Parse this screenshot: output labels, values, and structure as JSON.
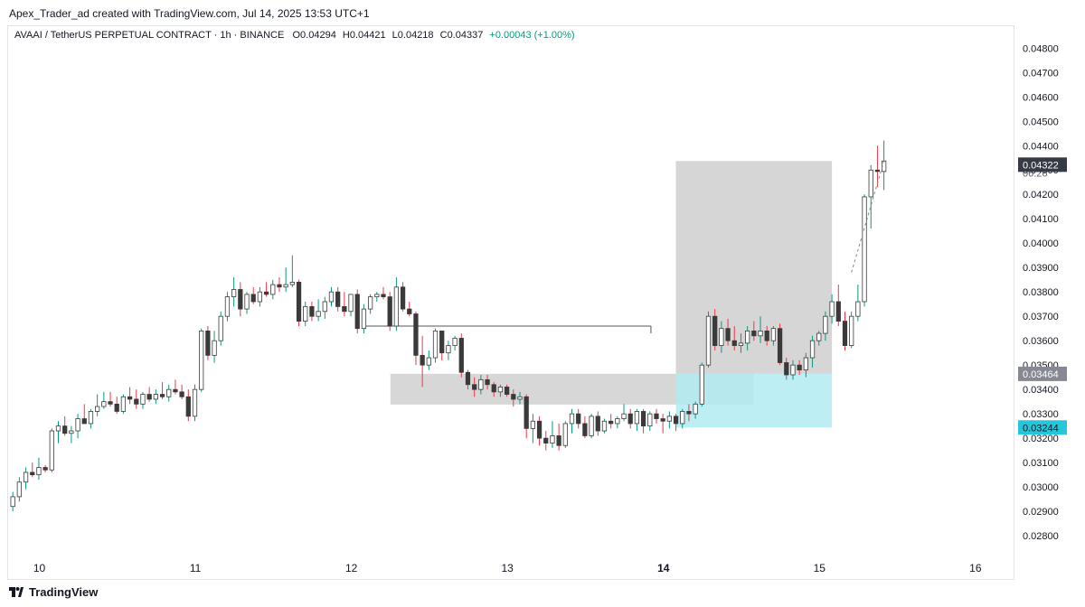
{
  "header": {
    "attribution": "Apex_Trader_ad created with TradingView.com, Jul 14, 2025 13:53 UTC+1"
  },
  "legend": {
    "symbol": "AVAAI / TetherUS PERPETUAL CONTRACT · 1h · BINANCE",
    "o_label": "O",
    "o_value": "0.04294",
    "h_label": "H",
    "h_value": "0.04421",
    "l_label": "L",
    "l_value": "0.04218",
    "c_label": "C",
    "c_value": "0.04337",
    "change": "+0.00043 (+1.00%)"
  },
  "footer": {
    "brand": "TradingView"
  },
  "colors": {
    "up": "#089981",
    "down": "#f23645",
    "candle_fill_up": "#ffffff",
    "candle_fill_down": "#3a3a3a",
    "profit_zone": "#c8c8c8",
    "stop_zone": "#b2ebf2",
    "current_price_badge": "#363a45",
    "entry_badge": "#868993",
    "stop_badge": "#26c6da"
  },
  "chart_data": {
    "type": "candlestick",
    "title": "",
    "y_tick_labels": [
      "0.04800",
      "0.04700",
      "0.04600",
      "0.04500",
      "0.04400",
      "0.04300",
      "0.04200",
      "0.04100",
      "0.04000",
      "0.03900",
      "0.03800",
      "0.03700",
      "0.03600",
      "0.03500",
      "0.03400",
      "0.03300",
      "0.03200",
      "0.03100",
      "0.03000",
      "0.02900",
      "0.02800"
    ],
    "x_tick_labels": [
      "10",
      "11",
      "12",
      "13",
      "14",
      "15",
      "16"
    ],
    "ylim": [
      0.0273,
      0.0489
    ],
    "xlim_days": [
      9.8,
      16.25
    ],
    "price_badges": {
      "last_high_text": "0.04337",
      "countdown_text": "06:26",
      "current_price": "0.04322",
      "entry": "0.03464",
      "stop": "0.03244"
    },
    "position": {
      "type": "long",
      "start_day": 14.08,
      "end_day": 15.08,
      "entry": 0.03464,
      "target": 0.04337,
      "stop": 0.03244
    },
    "zones": [
      {
        "label": "",
        "start_day": 12.25,
        "end_day": 14.58,
        "top": 0.03464,
        "bottom": 0.03338
      }
    ],
    "lines": [
      {
        "label": "",
        "start_day": 12.08,
        "end_day": 13.92,
        "value": 0.0366
      }
    ],
    "candles": [
      {
        "o": 0.0292,
        "h": 0.0298,
        "l": 0.029,
        "c": 0.0296
      },
      {
        "o": 0.0296,
        "h": 0.0304,
        "l": 0.0294,
        "c": 0.0302
      },
      {
        "o": 0.0302,
        "h": 0.0308,
        "l": 0.0299,
        "c": 0.0306
      },
      {
        "o": 0.0306,
        "h": 0.031,
        "l": 0.0304,
        "c": 0.0305
      },
      {
        "o": 0.0305,
        "h": 0.0312,
        "l": 0.0303,
        "c": 0.0308
      },
      {
        "o": 0.0308,
        "h": 0.0309,
        "l": 0.0306,
        "c": 0.0307
      },
      {
        "o": 0.0307,
        "h": 0.0324,
        "l": 0.0306,
        "c": 0.0323
      },
      {
        "o": 0.0323,
        "h": 0.0327,
        "l": 0.0318,
        "c": 0.0325
      },
      {
        "o": 0.0325,
        "h": 0.0329,
        "l": 0.0321,
        "c": 0.0322
      },
      {
        "o": 0.0322,
        "h": 0.0325,
        "l": 0.0318,
        "c": 0.0323
      },
      {
        "o": 0.0323,
        "h": 0.033,
        "l": 0.032,
        "c": 0.0328
      },
      {
        "o": 0.0328,
        "h": 0.0334,
        "l": 0.0326,
        "c": 0.0326
      },
      {
        "o": 0.0326,
        "h": 0.0332,
        "l": 0.0324,
        "c": 0.0331
      },
      {
        "o": 0.0331,
        "h": 0.0338,
        "l": 0.0329,
        "c": 0.0333
      },
      {
        "o": 0.0333,
        "h": 0.0339,
        "l": 0.0332,
        "c": 0.0335
      },
      {
        "o": 0.0335,
        "h": 0.0339,
        "l": 0.0333,
        "c": 0.0334
      },
      {
        "o": 0.0334,
        "h": 0.0337,
        "l": 0.033,
        "c": 0.0331
      },
      {
        "o": 0.0331,
        "h": 0.0338,
        "l": 0.033,
        "c": 0.0337
      },
      {
        "o": 0.0337,
        "h": 0.0341,
        "l": 0.0334,
        "c": 0.0336
      },
      {
        "o": 0.0336,
        "h": 0.034,
        "l": 0.0332,
        "c": 0.0334
      },
      {
        "o": 0.0334,
        "h": 0.0339,
        "l": 0.0332,
        "c": 0.0338
      },
      {
        "o": 0.0338,
        "h": 0.0341,
        "l": 0.0335,
        "c": 0.0336
      },
      {
        "o": 0.0336,
        "h": 0.034,
        "l": 0.0334,
        "c": 0.0338
      },
      {
        "o": 0.0338,
        "h": 0.0343,
        "l": 0.0336,
        "c": 0.0337
      },
      {
        "o": 0.0337,
        "h": 0.0342,
        "l": 0.0335,
        "c": 0.034
      },
      {
        "o": 0.034,
        "h": 0.0344,
        "l": 0.0338,
        "c": 0.0339
      },
      {
        "o": 0.0339,
        "h": 0.0342,
        "l": 0.0336,
        "c": 0.0337
      },
      {
        "o": 0.0337,
        "h": 0.034,
        "l": 0.0327,
        "c": 0.0329
      },
      {
        "o": 0.0329,
        "h": 0.0342,
        "l": 0.0327,
        "c": 0.034
      },
      {
        "o": 0.034,
        "h": 0.0365,
        "l": 0.0339,
        "c": 0.0364
      },
      {
        "o": 0.0364,
        "h": 0.0366,
        "l": 0.0352,
        "c": 0.0354
      },
      {
        "o": 0.0354,
        "h": 0.0364,
        "l": 0.0351,
        "c": 0.036
      },
      {
        "o": 0.036,
        "h": 0.0372,
        "l": 0.0358,
        "c": 0.037
      },
      {
        "o": 0.037,
        "h": 0.038,
        "l": 0.0368,
        "c": 0.0378
      },
      {
        "o": 0.0378,
        "h": 0.0386,
        "l": 0.0374,
        "c": 0.0381
      },
      {
        "o": 0.0381,
        "h": 0.0384,
        "l": 0.037,
        "c": 0.0373
      },
      {
        "o": 0.0373,
        "h": 0.038,
        "l": 0.0371,
        "c": 0.0379
      },
      {
        "o": 0.0379,
        "h": 0.0382,
        "l": 0.0375,
        "c": 0.0376
      },
      {
        "o": 0.0376,
        "h": 0.0382,
        "l": 0.0374,
        "c": 0.038
      },
      {
        "o": 0.038,
        "h": 0.0384,
        "l": 0.0378,
        "c": 0.0379
      },
      {
        "o": 0.0379,
        "h": 0.0385,
        "l": 0.0377,
        "c": 0.0383
      },
      {
        "o": 0.0383,
        "h": 0.0386,
        "l": 0.038,
        "c": 0.0382
      },
      {
        "o": 0.0382,
        "h": 0.039,
        "l": 0.038,
        "c": 0.0383
      },
      {
        "o": 0.0383,
        "h": 0.0395,
        "l": 0.0382,
        "c": 0.0384
      },
      {
        "o": 0.0384,
        "h": 0.0385,
        "l": 0.0366,
        "c": 0.0368
      },
      {
        "o": 0.0368,
        "h": 0.0376,
        "l": 0.0366,
        "c": 0.0374
      },
      {
        "o": 0.0374,
        "h": 0.0376,
        "l": 0.0368,
        "c": 0.037
      },
      {
        "o": 0.037,
        "h": 0.0377,
        "l": 0.0368,
        "c": 0.0372
      },
      {
        "o": 0.0372,
        "h": 0.0378,
        "l": 0.0369,
        "c": 0.0376
      },
      {
        "o": 0.0376,
        "h": 0.0382,
        "l": 0.0374,
        "c": 0.038
      },
      {
        "o": 0.038,
        "h": 0.0382,
        "l": 0.0372,
        "c": 0.0374
      },
      {
        "o": 0.0374,
        "h": 0.038,
        "l": 0.037,
        "c": 0.0372
      },
      {
        "o": 0.0372,
        "h": 0.0379,
        "l": 0.037,
        "c": 0.0379
      },
      {
        "o": 0.0379,
        "h": 0.0381,
        "l": 0.0363,
        "c": 0.0365
      },
      {
        "o": 0.0365,
        "h": 0.0375,
        "l": 0.0363,
        "c": 0.0373
      },
      {
        "o": 0.0373,
        "h": 0.0379,
        "l": 0.0371,
        "c": 0.0378
      },
      {
        "o": 0.0378,
        "h": 0.038,
        "l": 0.0376,
        "c": 0.0379
      },
      {
        "o": 0.0379,
        "h": 0.0382,
        "l": 0.0377,
        "c": 0.0378
      },
      {
        "o": 0.0378,
        "h": 0.038,
        "l": 0.0364,
        "c": 0.0366
      },
      {
        "o": 0.0366,
        "h": 0.0386,
        "l": 0.0364,
        "c": 0.0382
      },
      {
        "o": 0.0382,
        "h": 0.0384,
        "l": 0.0372,
        "c": 0.0373
      },
      {
        "o": 0.0373,
        "h": 0.0376,
        "l": 0.037,
        "c": 0.0371
      },
      {
        "o": 0.0371,
        "h": 0.0372,
        "l": 0.035,
        "c": 0.0354
      },
      {
        "o": 0.0354,
        "h": 0.0362,
        "l": 0.0341,
        "c": 0.035
      },
      {
        "o": 0.035,
        "h": 0.0356,
        "l": 0.0348,
        "c": 0.0353
      },
      {
        "o": 0.0353,
        "h": 0.0365,
        "l": 0.0351,
        "c": 0.0364
      },
      {
        "o": 0.0364,
        "h": 0.0364,
        "l": 0.0352,
        "c": 0.0355
      },
      {
        "o": 0.0355,
        "h": 0.036,
        "l": 0.0352,
        "c": 0.0358
      },
      {
        "o": 0.0358,
        "h": 0.0362,
        "l": 0.0356,
        "c": 0.0361
      },
      {
        "o": 0.0361,
        "h": 0.0363,
        "l": 0.0345,
        "c": 0.0347
      },
      {
        "o": 0.0347,
        "h": 0.0348,
        "l": 0.034,
        "c": 0.0342
      },
      {
        "o": 0.0342,
        "h": 0.0345,
        "l": 0.0337,
        "c": 0.034
      },
      {
        "o": 0.034,
        "h": 0.0346,
        "l": 0.0338,
        "c": 0.0344
      },
      {
        "o": 0.0344,
        "h": 0.0346,
        "l": 0.034,
        "c": 0.0342
      },
      {
        "o": 0.0342,
        "h": 0.0343,
        "l": 0.0337,
        "c": 0.0339
      },
      {
        "o": 0.0339,
        "h": 0.0342,
        "l": 0.0337,
        "c": 0.0341
      },
      {
        "o": 0.0341,
        "h": 0.0342,
        "l": 0.0337,
        "c": 0.0338
      },
      {
        "o": 0.0338,
        "h": 0.034,
        "l": 0.0333,
        "c": 0.0336
      },
      {
        "o": 0.0336,
        "h": 0.0339,
        "l": 0.0334,
        "c": 0.0337
      },
      {
        "o": 0.0337,
        "h": 0.0338,
        "l": 0.032,
        "c": 0.0324
      },
      {
        "o": 0.0324,
        "h": 0.033,
        "l": 0.0318,
        "c": 0.0327
      },
      {
        "o": 0.0327,
        "h": 0.0329,
        "l": 0.0317,
        "c": 0.032
      },
      {
        "o": 0.032,
        "h": 0.0323,
        "l": 0.0315,
        "c": 0.0318
      },
      {
        "o": 0.0318,
        "h": 0.0327,
        "l": 0.0316,
        "c": 0.0321
      },
      {
        "o": 0.0321,
        "h": 0.0326,
        "l": 0.0315,
        "c": 0.0317
      },
      {
        "o": 0.0317,
        "h": 0.0327,
        "l": 0.0316,
        "c": 0.0326
      },
      {
        "o": 0.0326,
        "h": 0.0332,
        "l": 0.0322,
        "c": 0.033
      },
      {
        "o": 0.033,
        "h": 0.0332,
        "l": 0.0324,
        "c": 0.0326
      },
      {
        "o": 0.0326,
        "h": 0.0329,
        "l": 0.032,
        "c": 0.0321
      },
      {
        "o": 0.0321,
        "h": 0.033,
        "l": 0.032,
        "c": 0.0329
      },
      {
        "o": 0.0329,
        "h": 0.0331,
        "l": 0.0321,
        "c": 0.0323
      },
      {
        "o": 0.0323,
        "h": 0.0328,
        "l": 0.0322,
        "c": 0.0327
      },
      {
        "o": 0.0327,
        "h": 0.033,
        "l": 0.0324,
        "c": 0.0326
      },
      {
        "o": 0.0326,
        "h": 0.0329,
        "l": 0.0324,
        "c": 0.0328
      },
      {
        "o": 0.0328,
        "h": 0.0334,
        "l": 0.0327,
        "c": 0.033
      },
      {
        "o": 0.033,
        "h": 0.0332,
        "l": 0.0324,
        "c": 0.0326
      },
      {
        "o": 0.0326,
        "h": 0.0332,
        "l": 0.0323,
        "c": 0.0331
      },
      {
        "o": 0.0331,
        "h": 0.0332,
        "l": 0.0322,
        "c": 0.0325
      },
      {
        "o": 0.0325,
        "h": 0.0331,
        "l": 0.0323,
        "c": 0.033
      },
      {
        "o": 0.033,
        "h": 0.0332,
        "l": 0.0326,
        "c": 0.0328
      },
      {
        "o": 0.0328,
        "h": 0.033,
        "l": 0.0322,
        "c": 0.0327
      },
      {
        "o": 0.0327,
        "h": 0.0331,
        "l": 0.0324,
        "c": 0.0329
      },
      {
        "o": 0.0329,
        "h": 0.033,
        "l": 0.0323,
        "c": 0.0326
      },
      {
        "o": 0.0326,
        "h": 0.0332,
        "l": 0.0324,
        "c": 0.0331
      },
      {
        "o": 0.0331,
        "h": 0.0334,
        "l": 0.0327,
        "c": 0.033
      },
      {
        "o": 0.033,
        "h": 0.0335,
        "l": 0.0328,
        "c": 0.0334
      },
      {
        "o": 0.0334,
        "h": 0.0351,
        "l": 0.0333,
        "c": 0.035
      },
      {
        "o": 0.035,
        "h": 0.0372,
        "l": 0.0349,
        "c": 0.037
      },
      {
        "o": 0.037,
        "h": 0.0373,
        "l": 0.0356,
        "c": 0.0358
      },
      {
        "o": 0.0358,
        "h": 0.0368,
        "l": 0.0355,
        "c": 0.0365
      },
      {
        "o": 0.0365,
        "h": 0.0369,
        "l": 0.0358,
        "c": 0.036
      },
      {
        "o": 0.036,
        "h": 0.0366,
        "l": 0.0356,
        "c": 0.0358
      },
      {
        "o": 0.0358,
        "h": 0.0363,
        "l": 0.0355,
        "c": 0.0359
      },
      {
        "o": 0.0359,
        "h": 0.0366,
        "l": 0.0356,
        "c": 0.0364
      },
      {
        "o": 0.0364,
        "h": 0.0368,
        "l": 0.036,
        "c": 0.0362
      },
      {
        "o": 0.0362,
        "h": 0.037,
        "l": 0.0359,
        "c": 0.0364
      },
      {
        "o": 0.0364,
        "h": 0.0366,
        "l": 0.0358,
        "c": 0.036
      },
      {
        "o": 0.036,
        "h": 0.0366,
        "l": 0.0358,
        "c": 0.0365
      },
      {
        "o": 0.0365,
        "h": 0.0367,
        "l": 0.035,
        "c": 0.0351
      },
      {
        "o": 0.0351,
        "h": 0.0353,
        "l": 0.0344,
        "c": 0.0346
      },
      {
        "o": 0.0346,
        "h": 0.0352,
        "l": 0.0344,
        "c": 0.035
      },
      {
        "o": 0.035,
        "h": 0.0352,
        "l": 0.0346,
        "c": 0.0348
      },
      {
        "o": 0.0348,
        "h": 0.0355,
        "l": 0.0345,
        "c": 0.0353
      },
      {
        "o": 0.0353,
        "h": 0.0362,
        "l": 0.0349,
        "c": 0.036
      },
      {
        "o": 0.036,
        "h": 0.0364,
        "l": 0.0358,
        "c": 0.0363
      },
      {
        "o": 0.0363,
        "h": 0.0372,
        "l": 0.036,
        "c": 0.037
      },
      {
        "o": 0.037,
        "h": 0.0379,
        "l": 0.0367,
        "c": 0.0376
      },
      {
        "o": 0.0376,
        "h": 0.0383,
        "l": 0.0366,
        "c": 0.0368
      },
      {
        "o": 0.0368,
        "h": 0.0372,
        "l": 0.0356,
        "c": 0.0358
      },
      {
        "o": 0.0358,
        "h": 0.0372,
        "l": 0.0357,
        "c": 0.037
      },
      {
        "o": 0.037,
        "h": 0.0383,
        "l": 0.0368,
        "c": 0.0376
      },
      {
        "o": 0.0376,
        "h": 0.042,
        "l": 0.0374,
        "c": 0.0419
      },
      {
        "o": 0.0419,
        "h": 0.0432,
        "l": 0.0406,
        "c": 0.043
      },
      {
        "o": 0.043,
        "h": 0.044,
        "l": 0.0423,
        "c": 0.04294
      },
      {
        "o": 0.04294,
        "h": 0.04421,
        "l": 0.04218,
        "c": 0.04337
      }
    ]
  }
}
